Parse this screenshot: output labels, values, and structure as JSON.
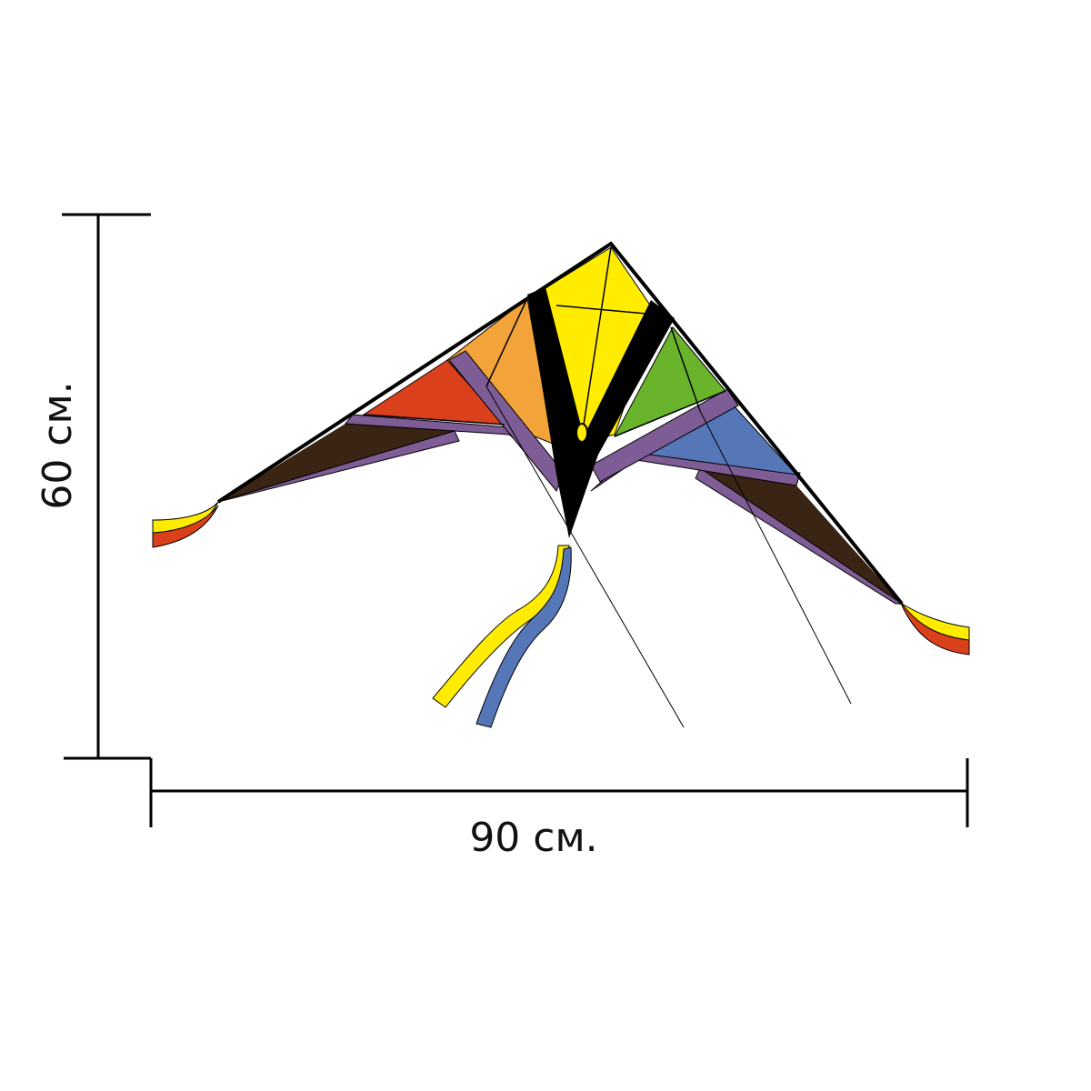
{
  "dimensions": {
    "height_label": "60 см.",
    "width_label": "90 см."
  },
  "kite": {
    "colors": {
      "yellow": "#ffec00",
      "orange": "#f2a33a",
      "red": "#d9401b",
      "green": "#6ab42c",
      "blue": "#5577b8",
      "purple": "#7e5c95",
      "brown": "#3a2413",
      "black": "#000000"
    }
  }
}
